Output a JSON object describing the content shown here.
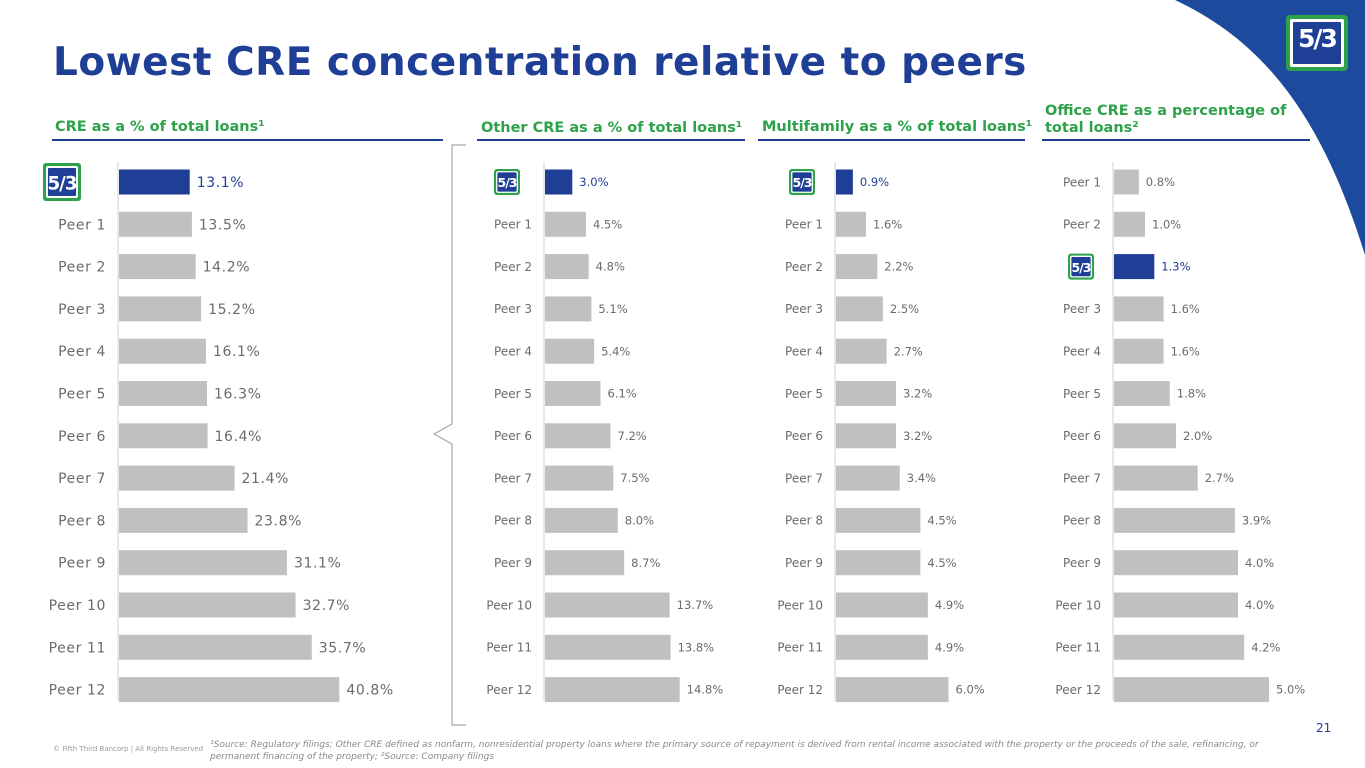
{
  "title": "Lowest CRE concentration relative to peers",
  "page_number": "21",
  "copyright": "© Fifth Third Bancorp | All Rights Reserved",
  "footnote": "¹Source: Regulatory filings; Other CRE defined as nonfarm, nonresidential property loans where the primary source of repayment is derived from rental income associated with the property or the proceeds of the sale, refinancing, or permanent financing of the property; ²Source: Company filings",
  "logo": {
    "name": "fifth-third-logo",
    "text": "5/3"
  },
  "colors": {
    "brand_blue": "#1f3f96",
    "green": "#2ea24b",
    "bar_gray": "#c0c0c0",
    "corner_blue": "#1d4a9c"
  },
  "chart_data": [
    {
      "type": "bar",
      "orientation": "horizontal",
      "title": "CRE as a % of total loans¹",
      "categories": [
        "Fifth Third",
        "Peer 1",
        "Peer 2",
        "Peer 3",
        "Peer 4",
        "Peer 5",
        "Peer 6",
        "Peer 7",
        "Peer 8",
        "Peer 9",
        "Peer 10",
        "Peer 11",
        "Peer 12"
      ],
      "values": [
        13.1,
        13.5,
        14.2,
        15.2,
        16.1,
        16.3,
        16.4,
        21.4,
        23.8,
        31.1,
        32.7,
        35.7,
        40.8
      ],
      "labels": [
        "13.1%",
        "13.5%",
        "14.2%",
        "15.2%",
        "16.1%",
        "16.3%",
        "16.4%",
        "21.4%",
        "23.8%",
        "31.1%",
        "32.7%",
        "35.7%",
        "40.8%"
      ],
      "highlight_index": 0,
      "xlim": [
        0,
        50
      ]
    },
    {
      "type": "bar",
      "orientation": "horizontal",
      "title": "Other CRE as a % of total loans¹",
      "categories": [
        "Fifth Third",
        "Peer 1",
        "Peer 2",
        "Peer 3",
        "Peer 4",
        "Peer 5",
        "Peer 6",
        "Peer 7",
        "Peer 8",
        "Peer 9",
        "Peer 10",
        "Peer 11",
        "Peer 12"
      ],
      "values": [
        3.0,
        4.5,
        4.8,
        5.1,
        5.4,
        6.1,
        7.2,
        7.5,
        8.0,
        8.7,
        13.7,
        13.8,
        14.8
      ],
      "labels": [
        "3.0%",
        "4.5%",
        "4.8%",
        "5.1%",
        "5.4%",
        "6.1%",
        "7.2%",
        "7.5%",
        "8.0%",
        "8.7%",
        "13.7%",
        "13.8%",
        "14.8%"
      ],
      "highlight_index": 0,
      "xlim": [
        0,
        20
      ]
    },
    {
      "type": "bar",
      "orientation": "horizontal",
      "title": "Multifamily as a % of total loans¹",
      "categories": [
        "Fifth Third",
        "Peer 1",
        "Peer 2",
        "Peer 3",
        "Peer 4",
        "Peer 5",
        "Peer 6",
        "Peer 7",
        "Peer 8",
        "Peer 9",
        "Peer 10",
        "Peer 11",
        "Peer 12"
      ],
      "values": [
        0.9,
        1.6,
        2.2,
        2.5,
        2.7,
        3.2,
        3.2,
        3.4,
        4.5,
        4.5,
        4.9,
        4.9,
        6.0
      ],
      "labels": [
        "0.9%",
        "1.6%",
        "2.2%",
        "2.5%",
        "2.7%",
        "3.2%",
        "3.2%",
        "3.4%",
        "4.5%",
        "4.5%",
        "4.9%",
        "4.9%",
        "6.0%"
      ],
      "highlight_index": 0,
      "xlim": [
        0,
        8
      ]
    },
    {
      "type": "bar",
      "orientation": "horizontal",
      "title": "Office CRE as a percentage of total loans²",
      "categories": [
        "Peer 1",
        "Peer 2",
        "Fifth Third",
        "Peer 3",
        "Peer 4",
        "Peer 5",
        "Peer 6",
        "Peer 7",
        "Peer 8",
        "Peer 9",
        "Peer 10",
        "Peer 11",
        "Peer 12"
      ],
      "values": [
        0.8,
        1.0,
        1.3,
        1.6,
        1.6,
        1.8,
        2.0,
        2.7,
        3.9,
        4.0,
        4.0,
        4.2,
        5.0
      ],
      "labels": [
        "0.8%",
        "1.0%",
        "1.3%",
        "1.6%",
        "1.6%",
        "1.8%",
        "2.0%",
        "2.7%",
        "3.9%",
        "4.0%",
        "4.0%",
        "4.2%",
        "5.0%"
      ],
      "highlight_index": 2,
      "xlim": [
        0,
        5
      ]
    }
  ]
}
